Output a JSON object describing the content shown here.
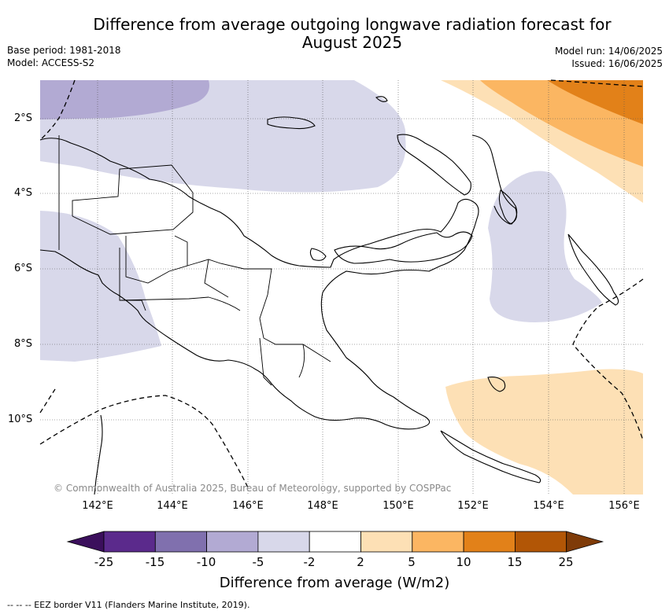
{
  "title_line1": "Difference from average outgoing longwave radiation forecast for",
  "title_line2": "August 2025",
  "base_period": "Base period: 1981-2018",
  "model": "Model: ACCESS-S2",
  "model_run": "Model run: 14/06/2025",
  "issued": "Issued: 16/06/2025",
  "lat_ticks": [
    "2°S",
    "4°S",
    "6°S",
    "8°S",
    "10°S"
  ],
  "lon_ticks": [
    "142°E",
    "144°E",
    "146°E",
    "148°E",
    "150°E",
    "152°E",
    "154°E",
    "156°E"
  ],
  "copyright": "© Commonwealth of Australia 2025, Bureau of Meteorology, supported by COSPPac",
  "colorbar": {
    "labels": [
      "-25",
      "-15",
      "-10",
      "-5",
      "-2",
      "2",
      "5",
      "10",
      "15",
      "25"
    ],
    "colors": [
      "#3b0f5c",
      "#5b2a8c",
      "#8070ae",
      "#b2aad3",
      "#d8d8ea",
      "#ffffff",
      "#fde0b5",
      "#fbb662",
      "#e28119",
      "#b25606",
      "#7f3b08"
    ],
    "title": "Difference from average (W/m2)"
  },
  "footnote": "--  --  -- EEZ border V11 (Flanders Marine Institute, 2019)."
}
